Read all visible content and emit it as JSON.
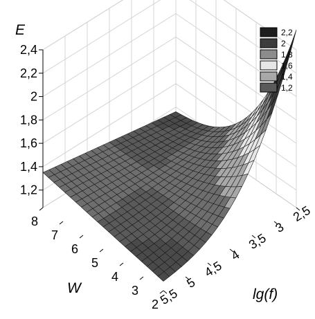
{
  "chart_data": {
    "type": "surface3d",
    "title": "",
    "zlabel": "E",
    "xlabel": "lg(f)",
    "ylabel": "W",
    "x_ticks": [
      "5,5",
      "5",
      "4,5",
      "4",
      "3,5",
      "3",
      "2,5"
    ],
    "y_ticks": [
      "8",
      "7",
      "6",
      "5",
      "4",
      "3",
      "2"
    ],
    "z_ticks": [
      "1,2",
      "1,4",
      "1,6",
      "1,8",
      "2",
      "2,2",
      "2,4"
    ],
    "x_range": [
      2.5,
      5.5
    ],
    "y_range": [
      2,
      8
    ],
    "z_range": [
      1.05,
      2.4
    ],
    "grid": true,
    "legend_placement": "top-right",
    "legend": [
      {
        "label": "2,2",
        "color": "#1e1e1e"
      },
      {
        "label": "2",
        "color": "#3c3c3c"
      },
      {
        "label": "1,8",
        "color": "#8c8c8c"
      },
      {
        "label": "1,6",
        "color": "#e6e6e6"
      },
      {
        "label": "1,4",
        "color": "#a8a8a8"
      },
      {
        "label": "1,2",
        "color": "#5a5a5a"
      }
    ],
    "surface_samples": [
      {
        "lgf": 2.5,
        "W": 2,
        "E": 2.4
      },
      {
        "lgf": 2.5,
        "W": 8,
        "E": 1.35
      },
      {
        "lgf": 5.5,
        "W": 2,
        "E": 1.1
      },
      {
        "lgf": 5.5,
        "W": 8,
        "E": 1.15
      },
      {
        "lgf": 4.0,
        "W": 5,
        "E": 1.3
      }
    ]
  }
}
